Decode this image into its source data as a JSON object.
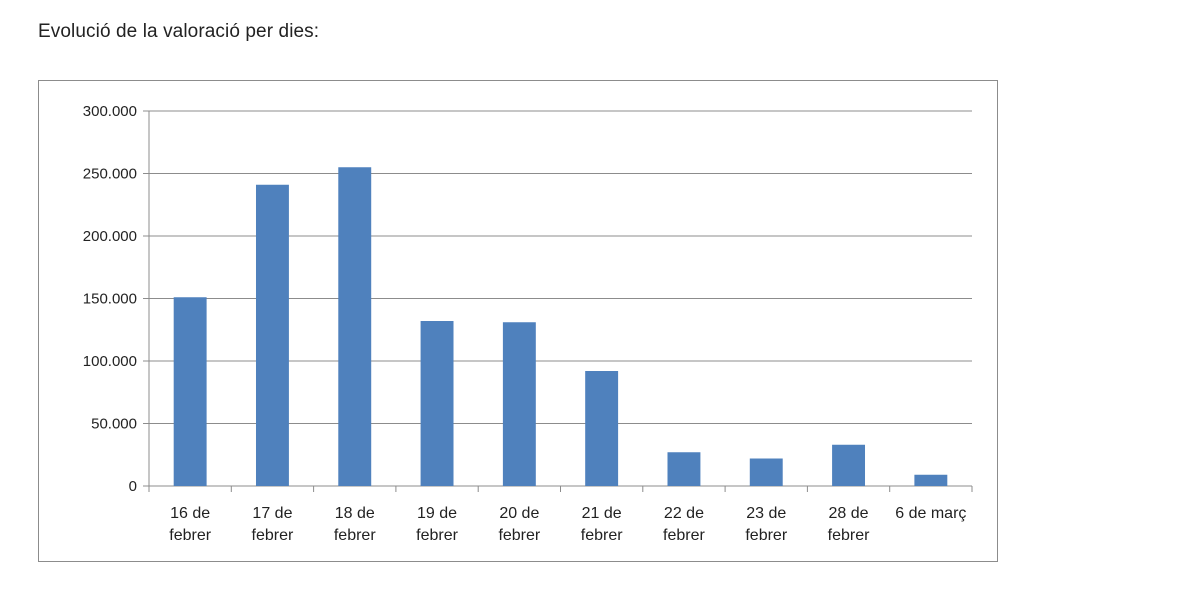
{
  "heading": "Evolució de la valoració per dies:",
  "chart_data": {
    "type": "bar",
    "title": "",
    "xlabel": "",
    "ylabel": "",
    "categories": [
      [
        "16 de",
        "febrer"
      ],
      [
        "17 de",
        "febrer"
      ],
      [
        "18 de",
        "febrer"
      ],
      [
        "19 de",
        "febrer"
      ],
      [
        "20 de",
        "febrer"
      ],
      [
        "21 de",
        "febrer"
      ],
      [
        "22 de",
        "febrer"
      ],
      [
        "23 de",
        "febrer"
      ],
      [
        "28 de",
        "febrer"
      ],
      [
        "6 de març"
      ]
    ],
    "values": [
      151000,
      241000,
      255000,
      132000,
      131000,
      92000,
      27000,
      22000,
      33000,
      9000
    ],
    "ylim": [
      0,
      300000
    ],
    "yticks": [
      0,
      50000,
      100000,
      150000,
      200000,
      250000,
      300000
    ],
    "ytick_labels": [
      "0",
      "50.000",
      "100.000",
      "150.000",
      "200.000",
      "250.000",
      "300.000"
    ],
    "grid": true,
    "legend": "none",
    "colors": {
      "bar": "#4f81bd",
      "grid": "#8c8c8c",
      "axis": "#8c8c8c"
    }
  }
}
